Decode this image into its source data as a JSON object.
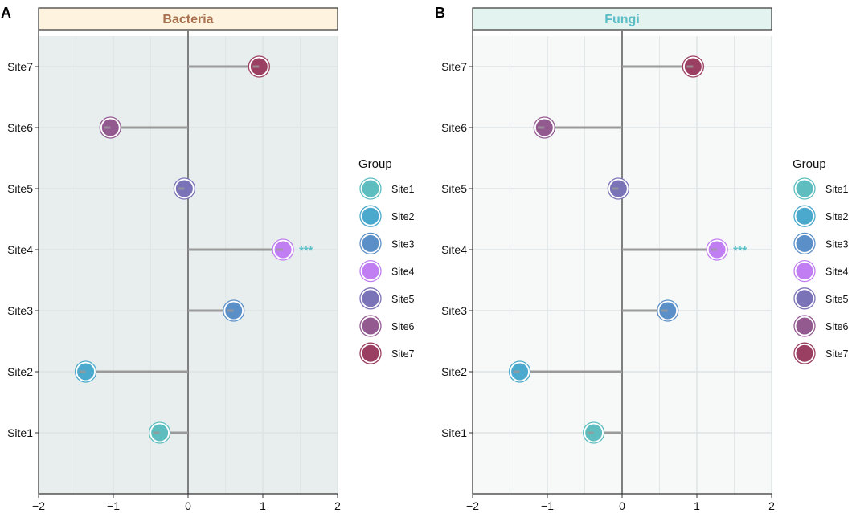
{
  "chart_data": [
    {
      "type": "lollipop",
      "panel_label": "A",
      "title": "Bacteria",
      "strip_fill": "#fdf3df",
      "strip_text_color": "#a8704f",
      "panel_bg": "#e8eeee",
      "categories": [
        "Site1",
        "Site2",
        "Site3",
        "Site4",
        "Site5",
        "Site6",
        "Site7"
      ],
      "values": [
        -0.38,
        -1.37,
        0.61,
        1.27,
        -0.05,
        -1.04,
        0.95
      ],
      "annotations": [
        {
          "category": "Site4",
          "text": "***"
        }
      ],
      "xlim": [
        -2,
        2
      ],
      "xticks": [
        "−2",
        "−1",
        "0",
        "1",
        "2"
      ],
      "grid": true
    },
    {
      "type": "lollipop",
      "panel_label": "B",
      "title": "Fungi",
      "strip_fill": "#e3f3f0",
      "strip_text_color": "#5bbec6",
      "panel_bg": "#f7f9f8",
      "categories": [
        "Site1",
        "Site2",
        "Site3",
        "Site4",
        "Site5",
        "Site6",
        "Site7"
      ],
      "values": [
        -0.38,
        -1.37,
        0.61,
        1.27,
        -0.05,
        -1.04,
        0.95
      ],
      "annotations": [
        {
          "category": "Site4",
          "text": "***"
        }
      ],
      "xlim": [
        -2,
        2
      ],
      "xticks": [
        "−2",
        "−1",
        "0",
        "1",
        "2"
      ],
      "grid": true
    }
  ],
  "legend": {
    "title": "Group",
    "placement": "right",
    "items": [
      "Site1",
      "Site2",
      "Site3",
      "Site4",
      "Site5",
      "Site6",
      "Site7"
    ],
    "colors": [
      "#5dbdbf",
      "#4aa9cc",
      "#5b8fc8",
      "#c07ef2",
      "#7b73b8",
      "#935a90",
      "#9b3f62"
    ]
  },
  "annotation_color": "#5bc0c8"
}
